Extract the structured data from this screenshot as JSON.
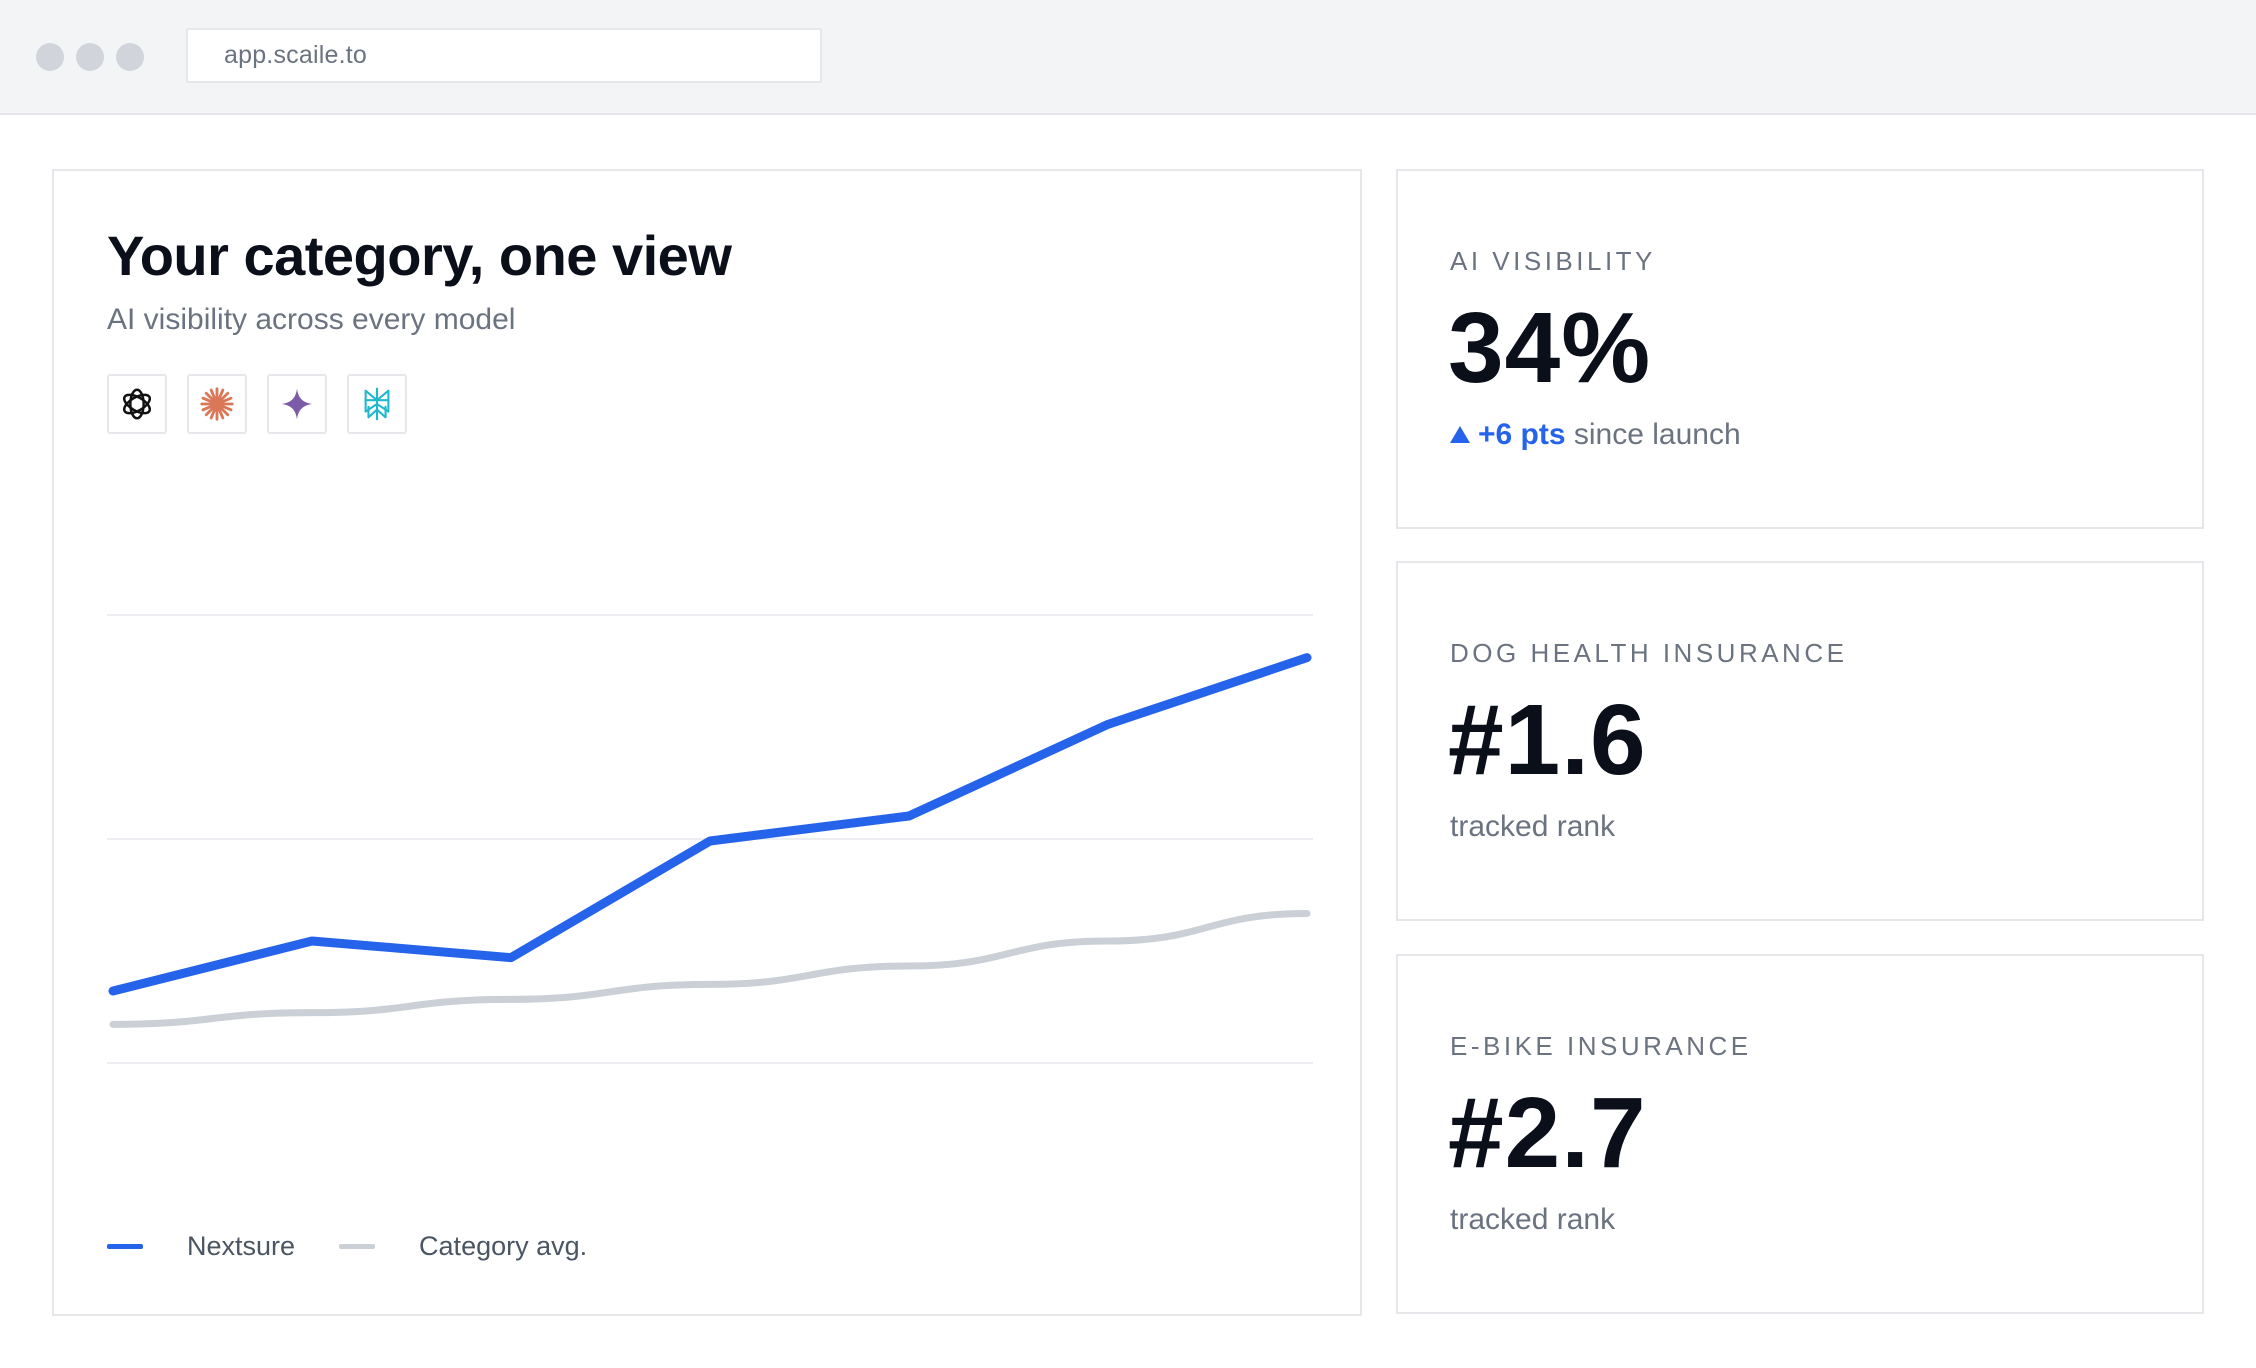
{
  "browser": {
    "url": "app.scaile.to"
  },
  "chart_card": {
    "title": "Your category, one view",
    "subtitle": "AI visibility across every model",
    "models": [
      {
        "icon": "openai-icon",
        "color": "#111111"
      },
      {
        "icon": "claude-icon",
        "color": "#d97757"
      },
      {
        "icon": "gemini-icon",
        "color": "#7c5ca8"
      },
      {
        "icon": "perplexity-icon",
        "color": "#20b8cd"
      }
    ]
  },
  "chart_data": {
    "type": "line",
    "x": [
      0,
      1,
      2,
      3,
      4,
      5,
      6
    ],
    "series": [
      {
        "name": "Nextsure",
        "color": "#2563eb",
        "values": [
          12,
          18,
          16,
          30,
          33,
          44,
          52
        ]
      },
      {
        "name": "Category avg.",
        "color": "#cbcfd6",
        "values": [
          8,
          9.4,
          11,
          12.8,
          15,
          18,
          21.3
        ]
      }
    ],
    "ylim": [
      0,
      60
    ],
    "grid": true,
    "legend": "bottom-left"
  },
  "stats": [
    {
      "label": "AI VISIBILITY",
      "value": "34%",
      "delta": "+6 pts",
      "sub": "since launch"
    },
    {
      "label": "DOG HEALTH INSURANCE",
      "value": "#1.6",
      "sub": "tracked rank"
    },
    {
      "label": "E-BIKE INSURANCE",
      "value": "#2.7",
      "sub": "tracked rank"
    }
  ],
  "colors": {
    "accent": "#2563eb",
    "muted_line": "#cbcfd6",
    "border": "#e5e7eb"
  }
}
